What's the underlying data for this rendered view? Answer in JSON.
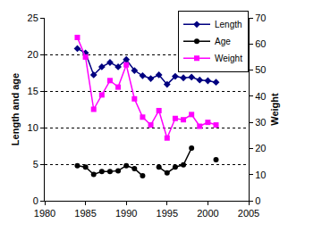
{
  "chart_data": {
    "type": "line",
    "y_label": "Length and age",
    "y2_label": "Weight",
    "x": [
      1984,
      1985,
      1986,
      1987,
      1988,
      1989,
      1990,
      1991,
      1992,
      1993,
      1994,
      1995,
      1996,
      1997,
      1998,
      1999,
      2000,
      2001
    ],
    "series": [
      {
        "name": "Length",
        "color": "#000080",
        "marker": "diamond",
        "values": [
          20.8,
          20.2,
          17.2,
          18.3,
          18.9,
          18.3,
          19.3,
          17.8,
          17.1,
          16.7,
          17.2,
          15.9,
          17.0,
          16.8,
          16.9,
          16.5,
          16.4,
          16.2
        ]
      },
      {
        "name": "Age",
        "color": "#000000",
        "marker": "circle",
        "values": [
          4.8,
          4.6,
          3.6,
          4.0,
          4.0,
          4.1,
          4.8,
          4.4,
          3.4,
          null,
          4.6,
          3.8,
          4.6,
          4.9,
          7.2,
          null,
          null,
          5.6
        ]
      },
      {
        "name": "Weight",
        "color": "#ff00ff",
        "marker": "square",
        "axis": "y2",
        "values": [
          62.5,
          55,
          35,
          40.5,
          46,
          43.5,
          52,
          39,
          32,
          29,
          34.5,
          24,
          31.5,
          31,
          33,
          28.5,
          30,
          29
        ]
      }
    ],
    "xlim": [
      1980,
      2005
    ],
    "xticks": [
      1980,
      1985,
      1990,
      1995,
      2000,
      2005
    ],
    "ylim": [
      0,
      25
    ],
    "yticks": [
      0,
      5,
      10,
      15,
      20,
      25
    ],
    "y2lim": [
      0,
      70
    ],
    "y2ticks": [
      0,
      10,
      20,
      30,
      40,
      50,
      60,
      70
    ],
    "grid": true,
    "legend": "upper right"
  }
}
